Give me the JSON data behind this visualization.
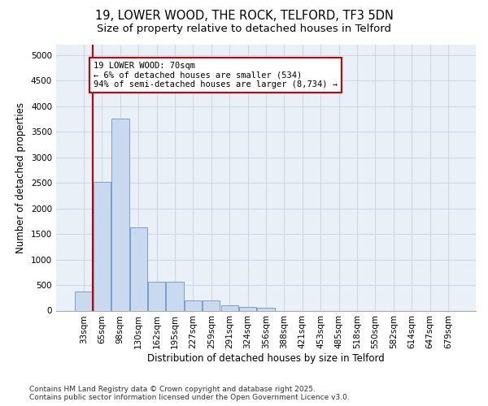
{
  "title_line1": "19, LOWER WOOD, THE ROCK, TELFORD, TF3 5DN",
  "title_line2": "Size of property relative to detached houses in Telford",
  "xlabel": "Distribution of detached houses by size in Telford",
  "ylabel": "Number of detached properties",
  "categories": [
    "33sqm",
    "65sqm",
    "98sqm",
    "130sqm",
    "162sqm",
    "195sqm",
    "227sqm",
    "259sqm",
    "291sqm",
    "324sqm",
    "356sqm",
    "388sqm",
    "421sqm",
    "453sqm",
    "485sqm",
    "518sqm",
    "550sqm",
    "582sqm",
    "614sqm",
    "647sqm",
    "679sqm"
  ],
  "values": [
    370,
    2520,
    3750,
    1620,
    570,
    570,
    200,
    200,
    105,
    65,
    50,
    0,
    0,
    0,
    0,
    0,
    0,
    0,
    0,
    0,
    0
  ],
  "bar_color": "#c9d9f0",
  "bar_edge_color": "#7a9fc7",
  "vline_color": "#cc0000",
  "annotation_text": "19 LOWER WOOD: 70sqm\n← 6% of detached houses are smaller (534)\n94% of semi-detached houses are larger (8,734) →",
  "annotation_box_color": "#ffffff",
  "annotation_box_edge_color": "#cc0000",
  "ylim": [
    0,
    5200
  ],
  "yticks": [
    0,
    500,
    1000,
    1500,
    2000,
    2500,
    3000,
    3500,
    4000,
    4500,
    5000
  ],
  "grid_color": "#d0d8e8",
  "background_color": "#eaf0f8",
  "footer_line1": "Contains HM Land Registry data © Crown copyright and database right 2025.",
  "footer_line2": "Contains public sector information licensed under the Open Government Licence v3.0.",
  "title_fontsize": 10.5,
  "subtitle_fontsize": 9.5,
  "tick_fontsize": 7.5,
  "xlabel_fontsize": 8.5,
  "ylabel_fontsize": 8.5,
  "footer_fontsize": 6.5,
  "annotation_fontsize": 7.5
}
